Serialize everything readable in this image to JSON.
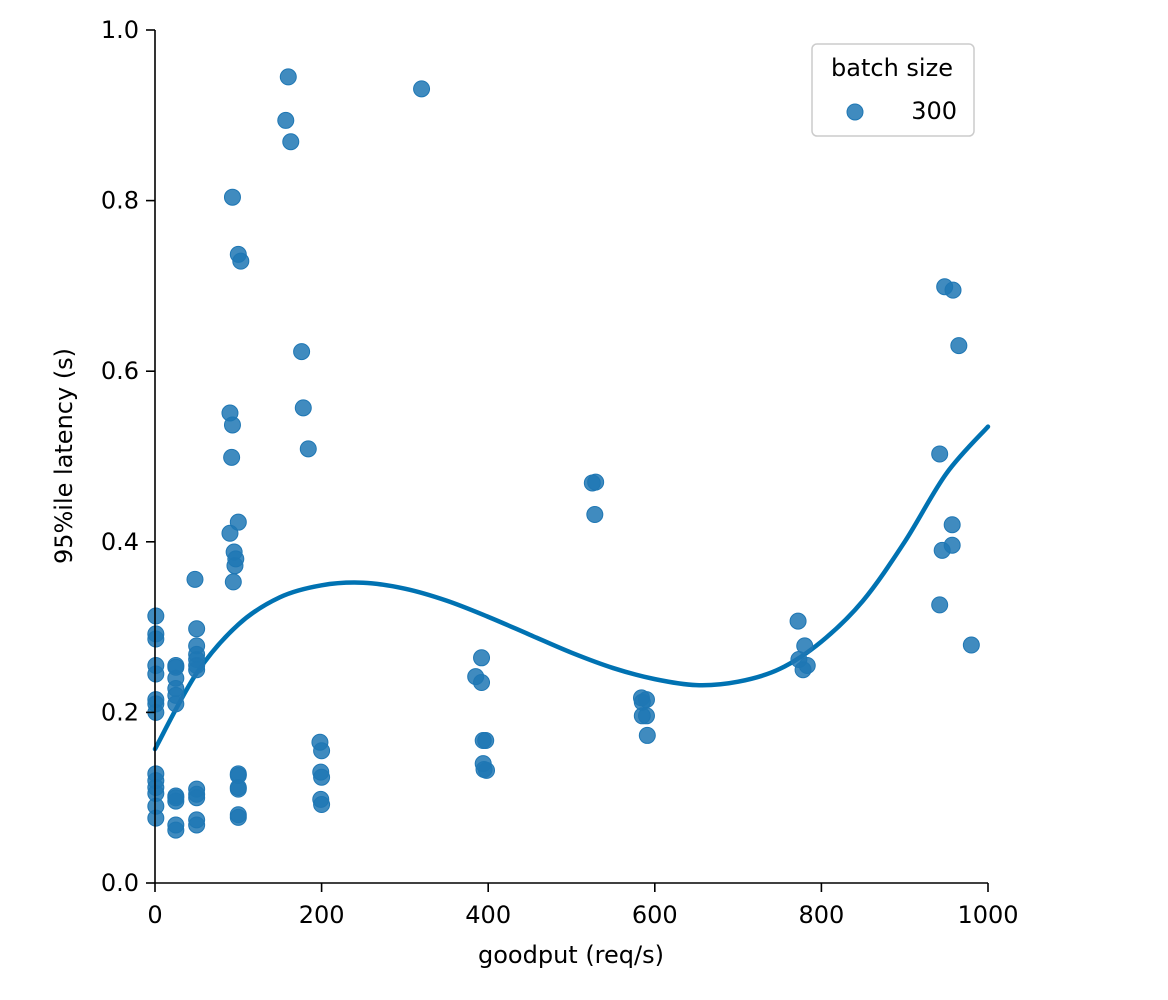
{
  "chart_data": {
    "type": "scatter",
    "title": "",
    "xlabel": "goodput (req/s)",
    "ylabel": "95%ile latency (s)",
    "xlim": [
      0,
      1000
    ],
    "ylim": [
      0,
      1.0
    ],
    "x_ticks": [
      0,
      200,
      400,
      600,
      800,
      1000
    ],
    "y_ticks": [
      0.0,
      0.2,
      0.4,
      0.6,
      0.8,
      1.0
    ],
    "x_tick_labels": [
      "0",
      "200",
      "400",
      "600",
      "800",
      "1000"
    ],
    "y_tick_labels": [
      "0.0",
      "0.2",
      "0.4",
      "0.6",
      "0.8",
      "1.0"
    ],
    "grid": false,
    "legend": {
      "title": "batch size",
      "placement": "top-right",
      "entries": [
        "300"
      ]
    },
    "colors": {
      "points": "#1f77b4",
      "fit_line": "#0072b2"
    },
    "series": [
      {
        "name": "300",
        "points": [
          {
            "x": 1,
            "y": 0.313
          },
          {
            "x": 1,
            "y": 0.292
          },
          {
            "x": 1,
            "y": 0.286
          },
          {
            "x": 1,
            "y": 0.255
          },
          {
            "x": 1,
            "y": 0.245
          },
          {
            "x": 1,
            "y": 0.215
          },
          {
            "x": 1,
            "y": 0.21
          },
          {
            "x": 1,
            "y": 0.2
          },
          {
            "x": 1,
            "y": 0.128
          },
          {
            "x": 1,
            "y": 0.12
          },
          {
            "x": 1,
            "y": 0.112
          },
          {
            "x": 1,
            "y": 0.105
          },
          {
            "x": 1,
            "y": 0.09
          },
          {
            "x": 1,
            "y": 0.076
          },
          {
            "x": 25,
            "y": 0.255
          },
          {
            "x": 25,
            "y": 0.253
          },
          {
            "x": 25,
            "y": 0.24
          },
          {
            "x": 25,
            "y": 0.228
          },
          {
            "x": 25,
            "y": 0.22
          },
          {
            "x": 25,
            "y": 0.21
          },
          {
            "x": 25,
            "y": 0.102
          },
          {
            "x": 25,
            "y": 0.1
          },
          {
            "x": 25,
            "y": 0.096
          },
          {
            "x": 25,
            "y": 0.068
          },
          {
            "x": 25,
            "y": 0.062
          },
          {
            "x": 48,
            "y": 0.356
          },
          {
            "x": 50,
            "y": 0.298
          },
          {
            "x": 50,
            "y": 0.278
          },
          {
            "x": 50,
            "y": 0.268
          },
          {
            "x": 50,
            "y": 0.262
          },
          {
            "x": 50,
            "y": 0.255
          },
          {
            "x": 50,
            "y": 0.25
          },
          {
            "x": 50,
            "y": 0.11
          },
          {
            "x": 50,
            "y": 0.104
          },
          {
            "x": 50,
            "y": 0.1
          },
          {
            "x": 50,
            "y": 0.074
          },
          {
            "x": 50,
            "y": 0.068
          },
          {
            "x": 93,
            "y": 0.804
          },
          {
            "x": 100,
            "y": 0.737
          },
          {
            "x": 103,
            "y": 0.729
          },
          {
            "x": 90,
            "y": 0.551
          },
          {
            "x": 93,
            "y": 0.537
          },
          {
            "x": 92,
            "y": 0.499
          },
          {
            "x": 100,
            "y": 0.423
          },
          {
            "x": 90,
            "y": 0.41
          },
          {
            "x": 95,
            "y": 0.388
          },
          {
            "x": 97,
            "y": 0.38
          },
          {
            "x": 96,
            "y": 0.372
          },
          {
            "x": 94,
            "y": 0.353
          },
          {
            "x": 100,
            "y": 0.128
          },
          {
            "x": 100,
            "y": 0.126
          },
          {
            "x": 100,
            "y": 0.112
          },
          {
            "x": 100,
            "y": 0.11
          },
          {
            "x": 100,
            "y": 0.08
          },
          {
            "x": 100,
            "y": 0.077
          },
          {
            "x": 160,
            "y": 0.945
          },
          {
            "x": 157,
            "y": 0.894
          },
          {
            "x": 163,
            "y": 0.869
          },
          {
            "x": 176,
            "y": 0.623
          },
          {
            "x": 178,
            "y": 0.557
          },
          {
            "x": 184,
            "y": 0.509
          },
          {
            "x": 198,
            "y": 0.165
          },
          {
            "x": 200,
            "y": 0.155
          },
          {
            "x": 199,
            "y": 0.13
          },
          {
            "x": 200,
            "y": 0.124
          },
          {
            "x": 199,
            "y": 0.098
          },
          {
            "x": 200,
            "y": 0.092
          },
          {
            "x": 320,
            "y": 0.931
          },
          {
            "x": 392,
            "y": 0.264
          },
          {
            "x": 385,
            "y": 0.242
          },
          {
            "x": 392,
            "y": 0.235
          },
          {
            "x": 394,
            "y": 0.167
          },
          {
            "x": 397,
            "y": 0.167
          },
          {
            "x": 394,
            "y": 0.14
          },
          {
            "x": 398,
            "y": 0.132
          },
          {
            "x": 395,
            "y": 0.133
          },
          {
            "x": 525,
            "y": 0.469
          },
          {
            "x": 529,
            "y": 0.47
          },
          {
            "x": 528,
            "y": 0.432
          },
          {
            "x": 584,
            "y": 0.217
          },
          {
            "x": 590,
            "y": 0.215
          },
          {
            "x": 585,
            "y": 0.212
          },
          {
            "x": 585,
            "y": 0.196
          },
          {
            "x": 590,
            "y": 0.196
          },
          {
            "x": 591,
            "y": 0.173
          },
          {
            "x": 772,
            "y": 0.307
          },
          {
            "x": 780,
            "y": 0.278
          },
          {
            "x": 773,
            "y": 0.262
          },
          {
            "x": 783,
            "y": 0.255
          },
          {
            "x": 778,
            "y": 0.25
          },
          {
            "x": 948,
            "y": 0.699
          },
          {
            "x": 958,
            "y": 0.695
          },
          {
            "x": 965,
            "y": 0.63
          },
          {
            "x": 942,
            "y": 0.503
          },
          {
            "x": 957,
            "y": 0.42
          },
          {
            "x": 957,
            "y": 0.396
          },
          {
            "x": 945,
            "y": 0.39
          },
          {
            "x": 942,
            "y": 0.326
          },
          {
            "x": 980,
            "y": 0.279
          }
        ]
      }
    ],
    "fit_line": {
      "type": "cubic",
      "points": [
        {
          "x": 0,
          "y": 0.157
        },
        {
          "x": 50,
          "y": 0.246
        },
        {
          "x": 100,
          "y": 0.303
        },
        {
          "x": 150,
          "y": 0.335
        },
        {
          "x": 200,
          "y": 0.349
        },
        {
          "x": 250,
          "y": 0.352
        },
        {
          "x": 300,
          "y": 0.345
        },
        {
          "x": 350,
          "y": 0.331
        },
        {
          "x": 400,
          "y": 0.312
        },
        {
          "x": 450,
          "y": 0.291
        },
        {
          "x": 500,
          "y": 0.27
        },
        {
          "x": 550,
          "y": 0.252
        },
        {
          "x": 600,
          "y": 0.239
        },
        {
          "x": 650,
          "y": 0.232
        },
        {
          "x": 700,
          "y": 0.236
        },
        {
          "x": 750,
          "y": 0.251
        },
        {
          "x": 800,
          "y": 0.283
        },
        {
          "x": 850,
          "y": 0.331
        },
        {
          "x": 900,
          "y": 0.4
        },
        {
          "x": 950,
          "y": 0.48
        },
        {
          "x": 1000,
          "y": 0.535
        }
      ]
    }
  }
}
